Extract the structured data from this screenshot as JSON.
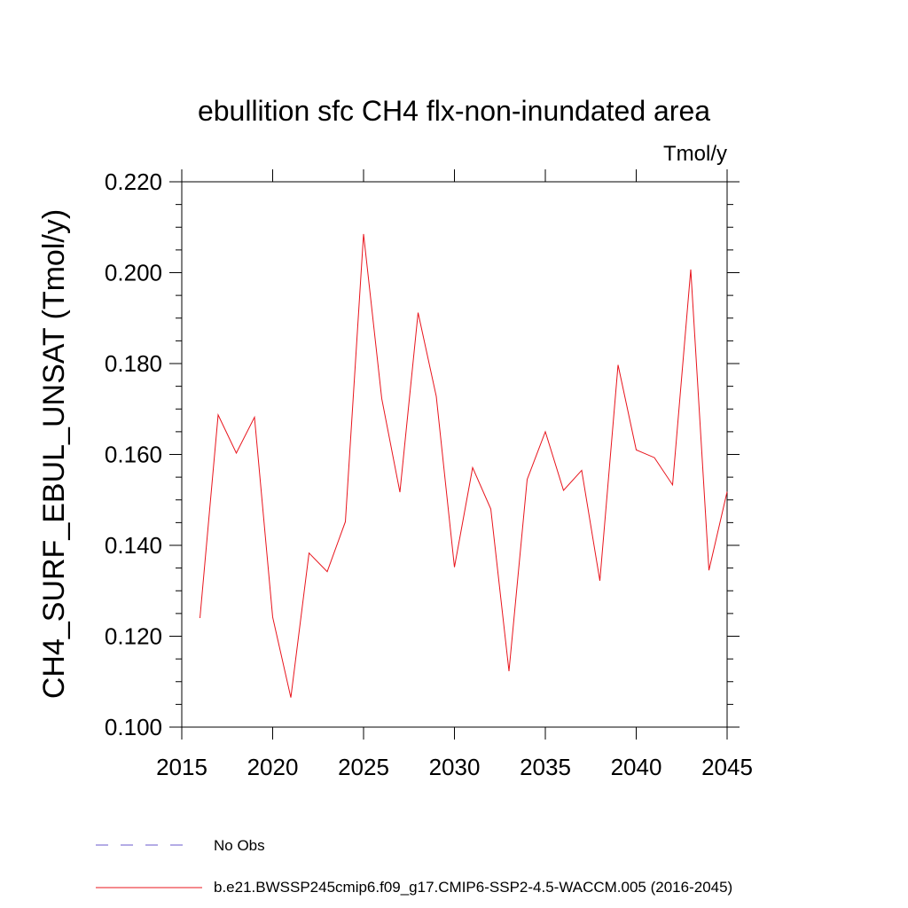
{
  "chart_data": {
    "type": "line",
    "title": "ebullition sfc CH4 flx-non-inundated area",
    "units_label": "Tmol/y",
    "xlabel": "",
    "ylabel": "CH4_SURF_EBUL_UNSAT  (Tmol/y)",
    "xlim": [
      2015,
      2045
    ],
    "ylim": [
      0.1,
      0.22
    ],
    "x_ticks": [
      2015,
      2020,
      2025,
      2030,
      2035,
      2040,
      2045
    ],
    "x_tick_labels": [
      "2015",
      "2020",
      "2025",
      "2030",
      "2035",
      "2040",
      "2045"
    ],
    "y_ticks": [
      0.1,
      0.12,
      0.14,
      0.16,
      0.18,
      0.2,
      0.22
    ],
    "y_tick_labels": [
      "0.100",
      "0.120",
      "0.140",
      "0.160",
      "0.180",
      "0.200",
      "0.220"
    ],
    "grid": false,
    "legend_position": "bottom",
    "series": [
      {
        "name": "b.e21.BWSSP245cmip6.f09_g17.CMIP6-SSP2-4.5-WACCM.005 (2016-2045)",
        "color": "#e8141c",
        "style": "solid",
        "x": [
          2016,
          2017,
          2018,
          2019,
          2020,
          2021,
          2022,
          2023,
          2024,
          2025,
          2026,
          2027,
          2028,
          2029,
          2030,
          2031,
          2032,
          2033,
          2034,
          2035,
          2036,
          2037,
          2038,
          2039,
          2040,
          2041,
          2042,
          2043,
          2044,
          2045
        ],
        "values": [
          0.124,
          0.1687,
          0.1603,
          0.1682,
          0.1242,
          0.1065,
          0.1383,
          0.1342,
          0.1452,
          0.2085,
          0.1723,
          0.1517,
          0.1912,
          0.1728,
          0.1352,
          0.1571,
          0.148,
          0.1123,
          0.1545,
          0.165,
          0.1521,
          0.1565,
          0.1322,
          0.1797,
          0.161,
          0.1593,
          0.1533,
          0.2007,
          0.1345,
          0.1518
        ]
      },
      {
        "name": "No Obs",
        "color": "#6a5acd",
        "style": "dashed",
        "x": [],
        "values": []
      }
    ]
  }
}
